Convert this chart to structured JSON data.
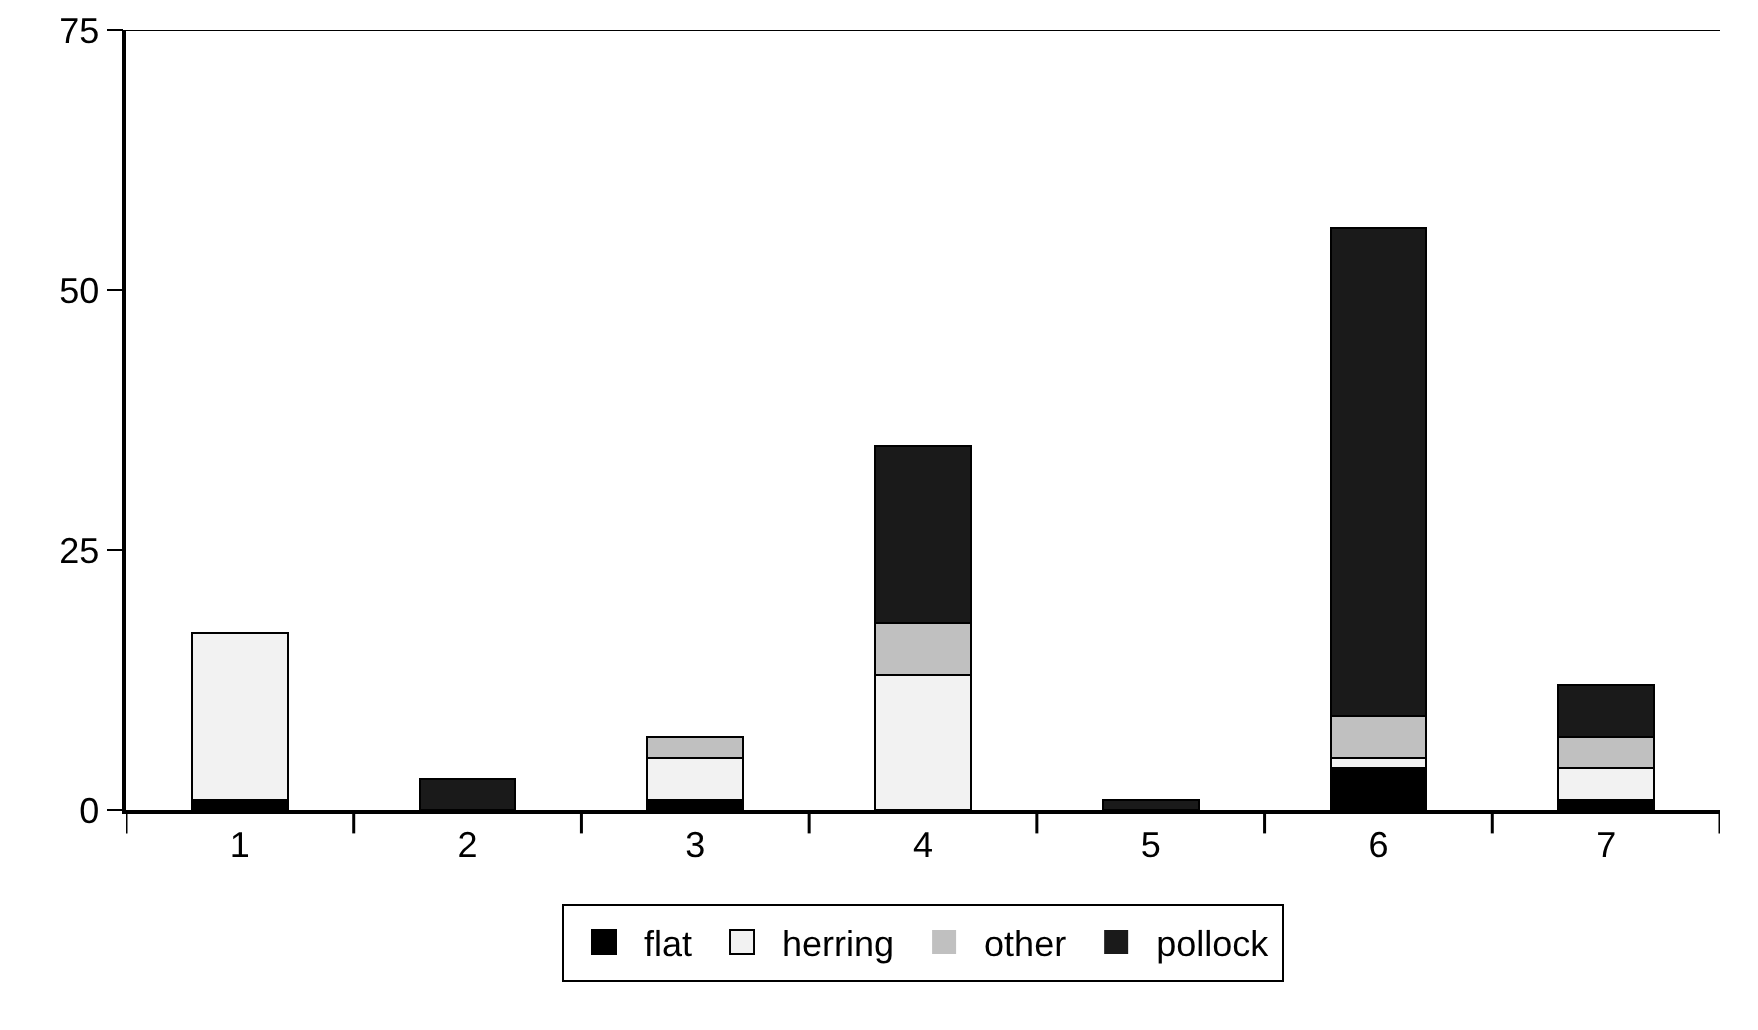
{
  "chart_data": {
    "type": "bar",
    "stacked": true,
    "categories": [
      "1",
      "2",
      "3",
      "4",
      "5",
      "6",
      "7"
    ],
    "series": [
      {
        "name": "flat",
        "color": "#000000",
        "values": [
          1,
          0,
          1,
          0,
          0,
          4,
          1
        ]
      },
      {
        "name": "herring",
        "color": "#f2f2f2",
        "values": [
          16,
          0,
          4,
          13,
          0,
          1,
          3
        ]
      },
      {
        "name": "other",
        "color": "#c0c0c0",
        "values": [
          0,
          0,
          2,
          5,
          0,
          4,
          3
        ]
      },
      {
        "name": "pollock",
        "color": "#1a1a1a",
        "values": [
          0,
          3,
          0,
          17,
          1,
          47,
          5
        ]
      }
    ],
    "ylim": [
      0,
      75
    ],
    "yticks": [
      0,
      25,
      50,
      75
    ],
    "grid": false,
    "legend": "bottom"
  }
}
